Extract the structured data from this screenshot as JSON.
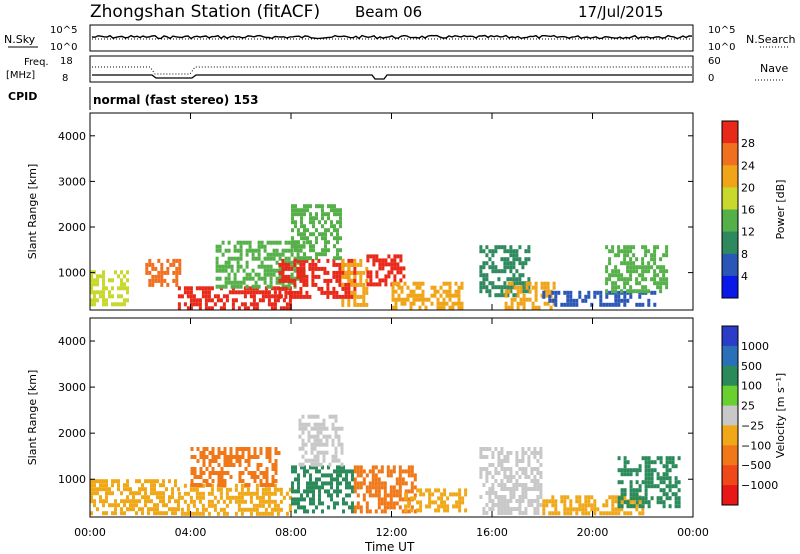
{
  "header": {
    "station": "Zhongshan Station (fitACF)",
    "beam": "Beam 06",
    "date": "17/Jul/2015"
  },
  "top_panels": {
    "nsky_label": "N.Sky",
    "nsky_tick_hi": "10^5",
    "nsky_tick_lo": "10^0",
    "nsearch_label": "N.Search",
    "freq_label": "Freq.",
    "freq_unit": "[MHz]",
    "freq_tick_hi": "18",
    "freq_tick_lo": "8",
    "nave_tick_hi": "60",
    "nave_tick_lo": "0",
    "nave_label": "Nave",
    "cpid_label": "CPID",
    "cpid_text": "normal (fast stereo) 153"
  },
  "chart_data": [
    {
      "type": "heatmap",
      "panel": "power",
      "ylabel": "Slant Range [km]",
      "xlabel": "",
      "ylim": [
        180,
        4500
      ],
      "yticks": [
        "1000",
        "2000",
        "3000",
        "4000"
      ],
      "xticks": [
        "00:00",
        "04:00",
        "08:00",
        "12:00",
        "16:00",
        "20:00",
        "00:00"
      ],
      "colorbar": {
        "label": "Power [dB]",
        "ticks": [
          "4",
          "8",
          "12",
          "16",
          "20",
          "24",
          "28"
        ],
        "colors": [
          "#0a18e8",
          "#2a56b8",
          "#2e8a5e",
          "#55b04a",
          "#c8d82c",
          "#f0a418",
          "#f07020",
          "#e82818"
        ]
      },
      "regions": [
        {
          "x0": 0.0,
          "x1": 1.5,
          "r0": 300,
          "r1": 1050,
          "value": 18
        },
        {
          "x0": 2.2,
          "x1": 3.6,
          "r0": 700,
          "r1": 1300,
          "value": 24
        },
        {
          "x0": 3.5,
          "x1": 8.0,
          "r0": 250,
          "r1": 700,
          "value": 28
        },
        {
          "x0": 5.0,
          "x1": 8.5,
          "r0": 700,
          "r1": 1700,
          "value": 12
        },
        {
          "x0": 7.5,
          "x1": 10.5,
          "r0": 450,
          "r1": 1300,
          "value": 28
        },
        {
          "x0": 8.0,
          "x1": 10.0,
          "r0": 1300,
          "r1": 2500,
          "value": 12
        },
        {
          "x0": 10.0,
          "x1": 11.0,
          "r0": 250,
          "r1": 1300,
          "value": 20
        },
        {
          "x0": 11.0,
          "x1": 12.5,
          "r0": 700,
          "r1": 1400,
          "value": 28
        },
        {
          "x0": 12.0,
          "x1": 14.8,
          "r0": 250,
          "r1": 800,
          "value": 20
        },
        {
          "x0": 15.5,
          "x1": 17.5,
          "r0": 500,
          "r1": 1600,
          "value": 8
        },
        {
          "x0": 16.5,
          "x1": 18.5,
          "r0": 250,
          "r1": 800,
          "value": 20
        },
        {
          "x0": 18.0,
          "x1": 22.5,
          "r0": 250,
          "r1": 600,
          "value": 4
        },
        {
          "x0": 20.5,
          "x1": 23.0,
          "r0": 600,
          "r1": 1600,
          "value": 12
        }
      ]
    },
    {
      "type": "heatmap",
      "panel": "velocity",
      "ylabel": "Slant Range [km]",
      "xlabel": "Time UT",
      "ylim": [
        180,
        4500
      ],
      "yticks": [
        "1000",
        "2000",
        "3000",
        "4000"
      ],
      "xticks": [
        "00:00",
        "04:00",
        "08:00",
        "12:00",
        "16:00",
        "20:00",
        "00:00"
      ],
      "colorbar": {
        "label": "Velocity [m s⁻¹]",
        "ticks": [
          "1000",
          "500",
          "100",
          "25",
          "−25",
          "−100",
          "−500",
          "−1000"
        ],
        "colors": [
          "#2a3cc8",
          "#2a70b8",
          "#2a8a5a",
          "#6ad030",
          "#c8c8c8",
          "#f0a818",
          "#f07818",
          "#f04818",
          "#e81818"
        ]
      },
      "regions": [
        {
          "x0": 0.0,
          "x1": 3.5,
          "r0": 300,
          "r1": 1000,
          "value": -100
        },
        {
          "x0": 3.5,
          "x1": 8.0,
          "r0": 250,
          "r1": 900,
          "value": -100
        },
        {
          "x0": 4.0,
          "x1": 7.5,
          "r0": 900,
          "r1": 1700,
          "value": -500
        },
        {
          "x0": 8.0,
          "x1": 10.5,
          "r0": 300,
          "r1": 1300,
          "value": 100
        },
        {
          "x0": 8.3,
          "x1": 10.0,
          "r0": 1300,
          "r1": 2400,
          "value": 0
        },
        {
          "x0": 10.5,
          "x1": 13.0,
          "r0": 300,
          "r1": 1300,
          "value": -500
        },
        {
          "x0": 12.5,
          "x1": 15.0,
          "r0": 300,
          "r1": 800,
          "value": -100
        },
        {
          "x0": 15.5,
          "x1": 18.0,
          "r0": 300,
          "r1": 1700,
          "value": 0
        },
        {
          "x0": 18.0,
          "x1": 22.0,
          "r0": 300,
          "r1": 650,
          "value": -100
        },
        {
          "x0": 21.0,
          "x1": 23.5,
          "r0": 400,
          "r1": 1500,
          "value": 100
        }
      ]
    }
  ]
}
